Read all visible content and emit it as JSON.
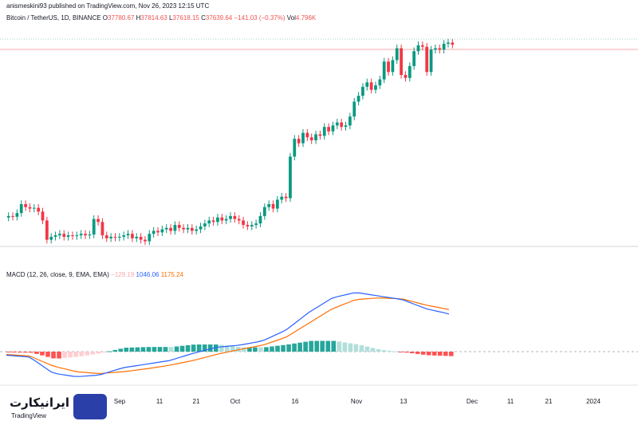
{
  "header": {
    "attribution": "anismeskini93 published on TradingView.com, Nov 26, 2023 12:15 UTC",
    "symbol": "Bitcoin / TetherUS, 1D, BINANCE",
    "open_label": "O",
    "open": "37780.67",
    "high_label": "H",
    "high": "37814.63",
    "low_label": "L",
    "low": "37618.15",
    "close_label": "C",
    "close": "37639.64",
    "change": "−141.03 (−0.37%)",
    "vol_label": "Vol",
    "vol": "4.796K"
  },
  "macd_legend": {
    "label": "MACD (12, 26, close, 9, EMA, EMA)",
    "hist": "−129.19",
    "macd": "1046.06",
    "signal": "1175.24"
  },
  "time_axis": [
    "Sep",
    "11",
    "21",
    "Oct",
    "16",
    "Nov",
    "13",
    "Dec",
    "11",
    "21",
    "2024"
  ],
  "logo": {
    "text": "ایرانیکارت",
    "sub": "TradingView"
  },
  "colors": {
    "up": "#089981",
    "down": "#f23645",
    "macd": "#2962ff",
    "signal": "#ff6d00",
    "hist_up": "#26a69a",
    "hist_up_light": "#b2dfdb",
    "hist_down": "#ff5252",
    "hist_down_light": "#ffcdd2",
    "logo_badge": "#2b3fa8"
  },
  "chart_data": {
    "type": "candlestick",
    "symbol": "BTCUSDT",
    "interval": "1D",
    "price_candles": [
      {
        "o": 26000,
        "c": 26100
      },
      {
        "o": 26100,
        "c": 26050
      },
      {
        "o": 26050,
        "c": 26300
      },
      {
        "o": 26300,
        "c": 26900
      },
      {
        "o": 26900,
        "c": 26700
      },
      {
        "o": 26700,
        "c": 26600
      },
      {
        "o": 26600,
        "c": 26650
      },
      {
        "o": 26650,
        "c": 26400
      },
      {
        "o": 26400,
        "c": 25800
      },
      {
        "o": 25800,
        "c": 24500
      },
      {
        "o": 24500,
        "c": 24700
      },
      {
        "o": 24700,
        "c": 24800
      },
      {
        "o": 24800,
        "c": 24900
      },
      {
        "o": 24900,
        "c": 24700
      },
      {
        "o": 24700,
        "c": 24800
      },
      {
        "o": 24800,
        "c": 24750
      },
      {
        "o": 24750,
        "c": 24800
      },
      {
        "o": 24800,
        "c": 24900
      },
      {
        "o": 24900,
        "c": 24800
      },
      {
        "o": 24800,
        "c": 24850
      },
      {
        "o": 24850,
        "c": 25900
      },
      {
        "o": 25900,
        "c": 25700
      },
      {
        "o": 25700,
        "c": 24800
      },
      {
        "o": 24800,
        "c": 24600
      },
      {
        "o": 24600,
        "c": 24700
      },
      {
        "o": 24700,
        "c": 24650
      },
      {
        "o": 24650,
        "c": 24700
      },
      {
        "o": 24700,
        "c": 24800
      },
      {
        "o": 24800,
        "c": 24900
      },
      {
        "o": 24900,
        "c": 24600
      },
      {
        "o": 24600,
        "c": 24700
      },
      {
        "o": 24700,
        "c": 24500
      },
      {
        "o": 24500,
        "c": 24400
      },
      {
        "o": 24400,
        "c": 24900
      },
      {
        "o": 24900,
        "c": 25100
      },
      {
        "o": 25100,
        "c": 25000
      },
      {
        "o": 25000,
        "c": 25200
      },
      {
        "o": 25200,
        "c": 25300
      },
      {
        "o": 25300,
        "c": 25100
      },
      {
        "o": 25100,
        "c": 25500
      },
      {
        "o": 25500,
        "c": 25300
      },
      {
        "o": 25300,
        "c": 25200
      },
      {
        "o": 25200,
        "c": 25300
      },
      {
        "o": 25300,
        "c": 25100
      },
      {
        "o": 25100,
        "c": 25200
      },
      {
        "o": 25200,
        "c": 25400
      },
      {
        "o": 25400,
        "c": 25600
      },
      {
        "o": 25600,
        "c": 25800
      },
      {
        "o": 25800,
        "c": 25700
      },
      {
        "o": 25700,
        "c": 26000
      },
      {
        "o": 26000,
        "c": 25800
      },
      {
        "o": 25800,
        "c": 25900
      },
      {
        "o": 25900,
        "c": 26100
      },
      {
        "o": 26100,
        "c": 25900
      },
      {
        "o": 25900,
        "c": 25800
      },
      {
        "o": 25800,
        "c": 25500
      },
      {
        "o": 25500,
        "c": 25400
      },
      {
        "o": 25400,
        "c": 25500
      },
      {
        "o": 25500,
        "c": 25600
      },
      {
        "o": 25600,
        "c": 26100
      },
      {
        "o": 26100,
        "c": 26700
      },
      {
        "o": 26700,
        "c": 26900
      },
      {
        "o": 26900,
        "c": 26600
      },
      {
        "o": 26600,
        "c": 27200
      },
      {
        "o": 27200,
        "c": 27400
      },
      {
        "o": 27400,
        "c": 27300
      },
      {
        "o": 27300,
        "c": 30100
      },
      {
        "o": 30100,
        "c": 31300
      },
      {
        "o": 31300,
        "c": 31000
      },
      {
        "o": 31000,
        "c": 31700
      },
      {
        "o": 31700,
        "c": 31400
      },
      {
        "o": 31400,
        "c": 31200
      },
      {
        "o": 31200,
        "c": 31600
      },
      {
        "o": 31600,
        "c": 31500
      },
      {
        "o": 31500,
        "c": 32100
      },
      {
        "o": 32100,
        "c": 31800
      },
      {
        "o": 31800,
        "c": 32200
      },
      {
        "o": 32200,
        "c": 32400
      },
      {
        "o": 32400,
        "c": 32100
      },
      {
        "o": 32100,
        "c": 32200
      },
      {
        "o": 32200,
        "c": 32800
      },
      {
        "o": 32800,
        "c": 33800
      },
      {
        "o": 33800,
        "c": 34200
      },
      {
        "o": 34200,
        "c": 34800
      },
      {
        "o": 34800,
        "c": 35100
      },
      {
        "o": 35100,
        "c": 34600
      },
      {
        "o": 34600,
        "c": 34900
      },
      {
        "o": 34900,
        "c": 35300
      },
      {
        "o": 35300,
        "c": 36500
      },
      {
        "o": 36500,
        "c": 35800
      },
      {
        "o": 35800,
        "c": 36600
      },
      {
        "o": 36600,
        "c": 37400
      },
      {
        "o": 37400,
        "c": 35600
      },
      {
        "o": 35600,
        "c": 35400
      },
      {
        "o": 35400,
        "c": 36200
      },
      {
        "o": 36200,
        "c": 37200
      },
      {
        "o": 37200,
        "c": 37600
      },
      {
        "o": 37600,
        "c": 37500
      },
      {
        "o": 37500,
        "c": 35800
      },
      {
        "o": 35800,
        "c": 37300
      },
      {
        "o": 37300,
        "c": 37400
      },
      {
        "o": 37400,
        "c": 37300
      },
      {
        "o": 37300,
        "c": 37700
      },
      {
        "o": 37700,
        "c": 37780
      },
      {
        "o": 37780,
        "c": 37640
      }
    ],
    "macd_series": {
      "name": "MACD",
      "values": [
        -100,
        -150,
        -600,
        -700,
        -650,
        -450,
        -350,
        -250,
        -50,
        120,
        180,
        300,
        600,
        1100,
        1500,
        1650,
        1550,
        1450,
        1200,
        1050
      ]
    },
    "signal_series": {
      "name": "Signal",
      "values": [
        -80,
        -120,
        -400,
        -560,
        -610,
        -560,
        -480,
        -380,
        -250,
        -80,
        60,
        180,
        400,
        800,
        1200,
        1450,
        1500,
        1470,
        1300,
        1175
      ]
    },
    "x_ticks": [
      "Sep",
      "11",
      "21",
      "Oct",
      "16",
      "Nov",
      "13",
      "Dec",
      "11",
      "21",
      "2024"
    ]
  }
}
